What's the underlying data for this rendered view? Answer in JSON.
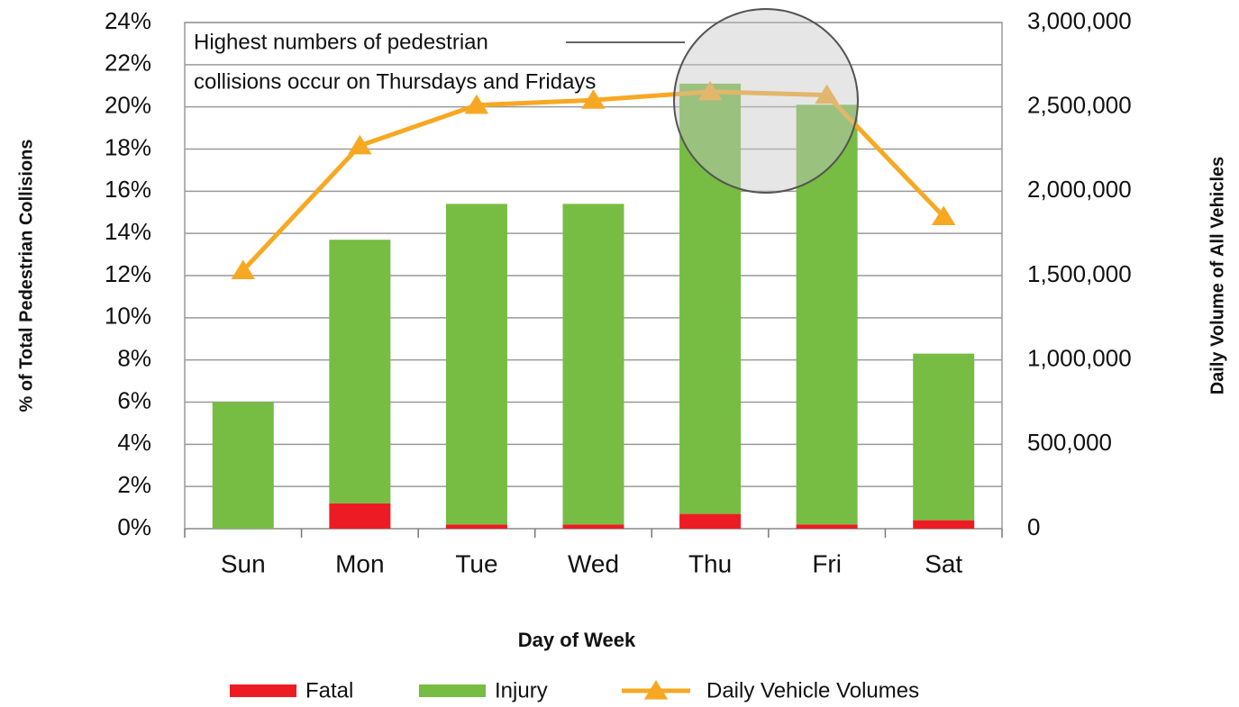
{
  "chart_data": {
    "type": "bar",
    "stacked": true,
    "categories": [
      "Sun",
      "Mon",
      "Tue",
      "Wed",
      "Thu",
      "Fri",
      "Sat"
    ],
    "series": [
      {
        "name": "Fatal",
        "color": "#ed1c24",
        "values": [
          0,
          1.2,
          0.2,
          0.2,
          0.7,
          0.2,
          0.4
        ]
      },
      {
        "name": "Injury",
        "color": "#77bc43",
        "values": [
          6,
          12.5,
          15.2,
          15.2,
          20.4,
          19.9,
          7.9
        ]
      },
      {
        "name": "Daily Vehicle Volumes",
        "type": "line",
        "axis": "y2",
        "color": "#f7a823",
        "values": [
          1530000,
          2270000,
          2510000,
          2540000,
          2590000,
          2570000,
          1850000
        ]
      }
    ],
    "xlabel": "Day of Week",
    "ylabel": "% of Total  Pedestrian Collisions",
    "y2label": "Daily Volume of All Vehicles",
    "ylim": [
      0,
      24
    ],
    "yticks": [
      {
        "value": 0,
        "label": "0%"
      },
      {
        "value": 2,
        "label": "2%"
      },
      {
        "value": 4,
        "label": "4%"
      },
      {
        "value": 6,
        "label": "6%"
      },
      {
        "value": 8,
        "label": "8%"
      },
      {
        "value": 10,
        "label": "10%"
      },
      {
        "value": 12,
        "label": "12%"
      },
      {
        "value": 14,
        "label": "14%"
      },
      {
        "value": 16,
        "label": "16%"
      },
      {
        "value": 18,
        "label": "18%"
      },
      {
        "value": 20,
        "label": "20%"
      },
      {
        "value": 22,
        "label": "22%"
      },
      {
        "value": 24,
        "label": "24%"
      }
    ],
    "y2lim": [
      0,
      3000000
    ],
    "y2ticks": [
      0,
      {
        "value": 500000,
        "label": "500,000"
      },
      {
        "value": 1000000,
        "label": "1,000,000"
      },
      {
        "value": 1500000,
        "label": "1,500,000"
      },
      {
        "value": 2000000,
        "label": "2,000,000"
      },
      {
        "value": 2500000,
        "label": "2,500,000"
      },
      {
        "value": 3000000,
        "label": "3,000,000"
      }
    ],
    "annotation": [
      "Highest numbers of pedestrian",
      "collisions occur on Thursdays and Fridays"
    ],
    "grid": true,
    "legend": "bottom"
  }
}
